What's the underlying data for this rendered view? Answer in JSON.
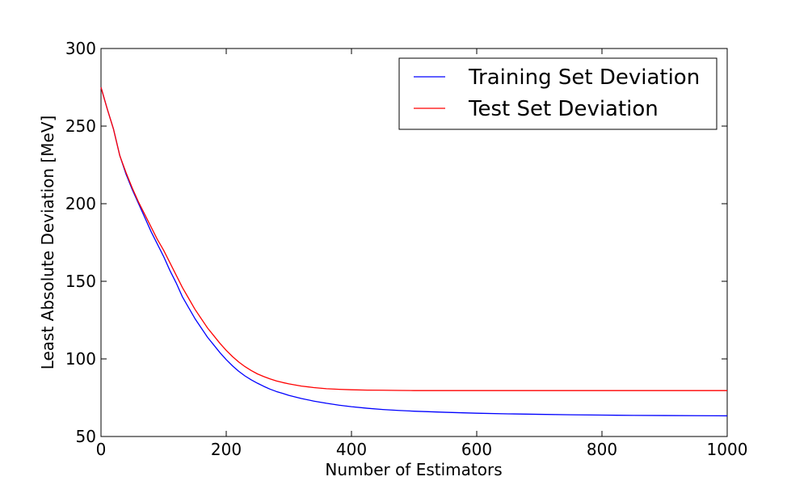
{
  "chart_data": {
    "type": "line",
    "title": "",
    "xlabel": "Number of Estimators",
    "ylabel": "Least Absolute Deviation [MeV]",
    "xlim": [
      0,
      1000
    ],
    "ylim": [
      50,
      300
    ],
    "xticks": [
      0,
      200,
      400,
      600,
      800,
      1000
    ],
    "yticks": [
      50,
      100,
      150,
      200,
      250,
      300
    ],
    "grid": false,
    "legend_position": "top-right",
    "series": [
      {
        "name": "Training Set Deviation",
        "color": "#0000ff",
        "x": [
          0,
          10,
          20,
          30,
          40,
          50,
          60,
          70,
          80,
          90,
          100,
          110,
          120,
          130,
          140,
          150,
          160,
          170,
          180,
          190,
          200,
          210,
          220,
          230,
          240,
          250,
          260,
          270,
          280,
          290,
          300,
          320,
          340,
          360,
          380,
          400,
          425,
          450,
          475,
          500,
          550,
          600,
          650,
          700,
          750,
          800,
          850,
          900,
          950,
          1000
        ],
        "y": [
          275,
          261,
          248,
          231,
          219,
          209,
          200,
          191,
          182,
          174,
          166,
          157,
          149,
          140,
          133,
          126,
          120,
          114,
          109,
          104,
          99.5,
          95.5,
          92,
          89,
          86.5,
          84.3,
          82.3,
          80.5,
          79,
          77.8,
          76.5,
          74.5,
          72.8,
          71.4,
          70.2,
          69.2,
          68.2,
          67.4,
          66.8,
          66.3,
          65.6,
          65,
          64.6,
          64.3,
          64,
          63.8,
          63.6,
          63.5,
          63.4,
          63.3
        ]
      },
      {
        "name": "Test Set Deviation",
        "color": "#ff0000",
        "x": [
          0,
          10,
          20,
          30,
          40,
          50,
          60,
          70,
          80,
          90,
          100,
          110,
          120,
          130,
          140,
          150,
          160,
          170,
          180,
          190,
          200,
          210,
          220,
          230,
          240,
          250,
          260,
          270,
          280,
          290,
          300,
          320,
          340,
          360,
          380,
          400,
          425,
          450,
          475,
          500,
          550,
          600,
          650,
          700,
          750,
          800,
          850,
          900,
          950,
          1000
        ],
        "y": [
          275,
          261,
          248,
          231,
          220,
          210,
          201,
          193,
          185,
          177,
          170,
          162,
          154,
          146,
          139,
          132,
          126,
          120,
          115,
          110,
          105.5,
          101.5,
          98,
          95,
          92.5,
          90.3,
          88.6,
          87.1,
          85.8,
          84.8,
          83.9,
          82.5,
          81.5,
          80.8,
          80.4,
          80.1,
          79.9,
          79.8,
          79.7,
          79.6,
          79.6,
          79.6,
          79.6,
          79.6,
          79.6,
          79.6,
          79.6,
          79.6,
          79.6,
          79.6
        ]
      }
    ]
  }
}
